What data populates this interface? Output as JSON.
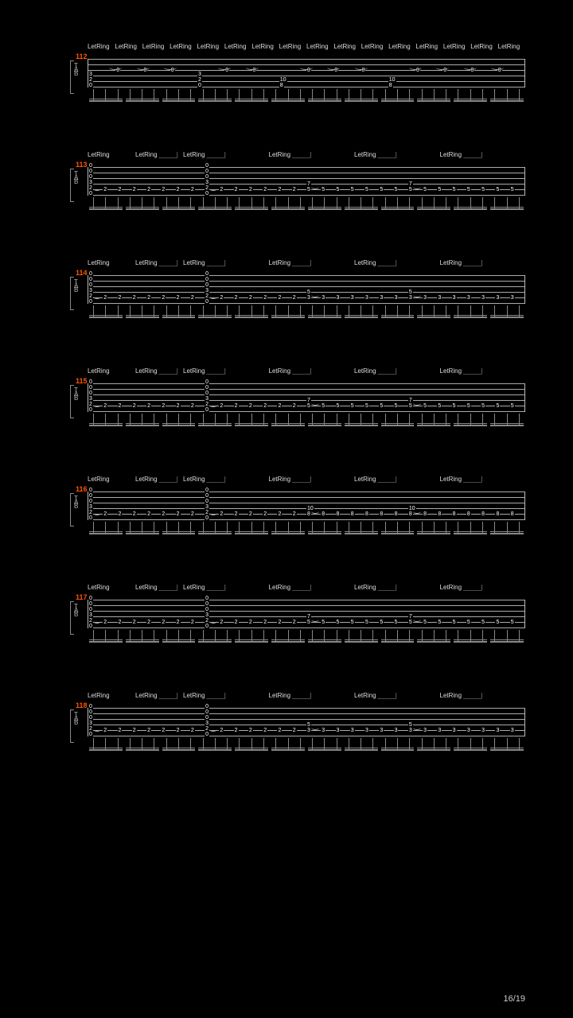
{
  "page_number": "16/19",
  "background_color": "#000000",
  "text_color": "#ffffff",
  "accent_color": "#ff5500",
  "line_color": "#aaaaaa",
  "measures": [
    {
      "number": "112",
      "letring_labels": [
        "LetRing",
        "LetRing",
        "LetRing",
        "LetRing",
        "LetRing",
        "LetRing",
        "LetRing",
        "LetRing",
        "LetRing",
        "LetRing",
        "LetRing",
        "LetRing",
        "LetRing",
        "LetRing",
        "LetRing",
        "LetRing"
      ],
      "dense": true,
      "chords": [
        {
          "frets": [
            "",
            "",
            "",
            "3",
            "2",
            "0"
          ]
        },
        {
          "frets": [
            "0"
          ]
        },
        {
          "frets": [
            "0"
          ]
        },
        {
          "frets": [
            "0"
          ]
        },
        {
          "frets": [
            "",
            "",
            "",
            "3",
            "2",
            "0"
          ]
        },
        {
          "frets": [
            "0"
          ]
        },
        {
          "frets": [
            "0"
          ]
        },
        {
          "frets": [
            "",
            "",
            "",
            "",
            "10",
            "8"
          ]
        },
        {
          "frets": [
            "0"
          ]
        },
        {
          "frets": [
            "0"
          ]
        },
        {
          "frets": [
            "0"
          ]
        },
        {
          "frets": [
            "",
            "",
            "",
            "",
            "10",
            "8"
          ]
        },
        {
          "frets": [
            "0"
          ]
        },
        {
          "frets": [
            "0"
          ]
        },
        {
          "frets": [
            "0"
          ]
        },
        {
          "frets": [
            "0"
          ]
        }
      ]
    },
    {
      "number": "113",
      "letring_labels": [
        "LetRing",
        "LetRing",
        "LetRing",
        "LetRing",
        "LetRing",
        "LetRing"
      ],
      "dense": false,
      "segments": [
        "chord",
        "2",
        "2",
        "2",
        "2",
        "2",
        "2",
        "2",
        "chord",
        "2",
        "2",
        "2",
        "2",
        "2",
        "2",
        "7/5",
        "5",
        "5",
        "5",
        "5",
        "5",
        "5",
        "7/5",
        "5",
        "5",
        "5",
        "5",
        "5",
        "5",
        "5"
      ],
      "chord_frets": [
        "0",
        "0",
        "0",
        "3",
        "2",
        "0"
      ]
    },
    {
      "number": "114",
      "letring_labels": [
        "LetRing",
        "LetRing",
        "LetRing",
        "LetRing",
        "LetRing",
        "LetRing"
      ],
      "dense": false,
      "segments": [
        "chord",
        "2",
        "2",
        "2",
        "2",
        "2",
        "2",
        "2",
        "chord",
        "2",
        "2",
        "2",
        "2",
        "2",
        "2",
        "5/3",
        "3",
        "3",
        "3",
        "3",
        "3",
        "3",
        "5/3",
        "3",
        "3",
        "3",
        "3",
        "3",
        "3",
        "3"
      ],
      "chord_frets": [
        "0",
        "0",
        "0",
        "3",
        "2",
        "0"
      ]
    },
    {
      "number": "115",
      "letring_labels": [
        "LetRing",
        "LetRing",
        "LetRing",
        "LetRing",
        "LetRing",
        "LetRing"
      ],
      "dense": false,
      "segments": [
        "chord",
        "2",
        "2",
        "2",
        "2",
        "2",
        "2",
        "2",
        "chord",
        "2",
        "2",
        "2",
        "2",
        "2",
        "2",
        "7/5",
        "5",
        "5",
        "5",
        "5",
        "5",
        "5",
        "7/5",
        "5",
        "5",
        "5",
        "5",
        "5",
        "5",
        "5"
      ],
      "chord_frets": [
        "0",
        "0",
        "0",
        "3",
        "2",
        "0"
      ]
    },
    {
      "number": "116",
      "letring_labels": [
        "LetRing",
        "LetRing",
        "LetRing",
        "LetRing",
        "LetRing",
        "LetRing"
      ],
      "dense": false,
      "segments": [
        "chord",
        "2",
        "2",
        "2",
        "2",
        "2",
        "2",
        "2",
        "chord",
        "2",
        "2",
        "2",
        "2",
        "2",
        "2",
        "10/8",
        "8",
        "8",
        "8",
        "8",
        "8",
        "8",
        "10/8",
        "8",
        "8",
        "8",
        "8",
        "8",
        "8",
        "8"
      ],
      "chord_frets": [
        "0",
        "0",
        "0",
        "3",
        "2",
        "0"
      ]
    },
    {
      "number": "117",
      "letring_labels": [
        "LetRing",
        "LetRing",
        "LetRing",
        "LetRing",
        "LetRing",
        "LetRing"
      ],
      "dense": false,
      "segments": [
        "chord",
        "2",
        "2",
        "2",
        "2",
        "2",
        "2",
        "2",
        "chord",
        "2",
        "2",
        "2",
        "2",
        "2",
        "2",
        "7/5",
        "5",
        "5",
        "5",
        "5",
        "5",
        "5",
        "7/5",
        "5",
        "5",
        "5",
        "5",
        "5",
        "5",
        "5"
      ],
      "chord_frets": [
        "0",
        "0",
        "0",
        "3",
        "2",
        "0"
      ]
    },
    {
      "number": "118",
      "letring_labels": [
        "LetRing",
        "LetRing",
        "LetRing",
        "LetRing",
        "LetRing",
        "LetRing"
      ],
      "dense": false,
      "segments": [
        "chord",
        "2",
        "2",
        "2",
        "2",
        "2",
        "2",
        "2",
        "chord",
        "2",
        "2",
        "2",
        "2",
        "2",
        "2",
        "5/3",
        "3",
        "3",
        "3",
        "3",
        "3",
        "3",
        "5/3",
        "3",
        "3",
        "3",
        "3",
        "3",
        "3",
        "3"
      ],
      "chord_frets": [
        "0",
        "0",
        "0",
        "3",
        "2",
        "0"
      ]
    }
  ]
}
